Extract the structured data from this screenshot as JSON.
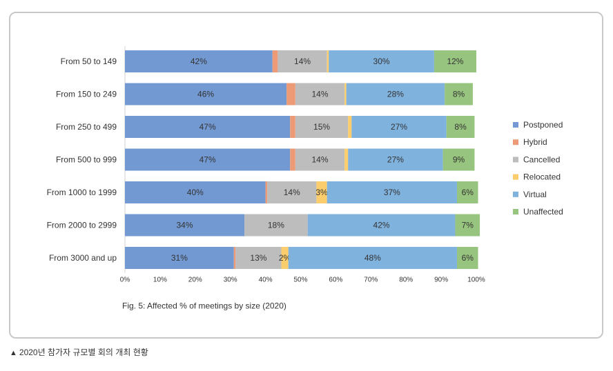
{
  "chart_data": {
    "type": "bar",
    "orientation": "horizontal",
    "stacked": true,
    "categories": [
      "From 50 to 149",
      "From 150 to 249",
      "From 250 to 499",
      "From 500 to 999",
      "From 1000 to 1999",
      "From 2000 to 2999",
      "From 3000 and up"
    ],
    "series": [
      {
        "name": "Postponed",
        "color": "#7399d2",
        "values": [
          42,
          46,
          47,
          47,
          40,
          34,
          31
        ],
        "labels": [
          "42%",
          "46%",
          "47%",
          "47%",
          "40%",
          "34%",
          "31%"
        ]
      },
      {
        "name": "Hybrid",
        "color": "#ec9b76",
        "values": [
          1.5,
          2.5,
          1.5,
          1.5,
          0.5,
          0,
          0.5
        ],
        "labels": [
          "",
          "",
          "",
          "",
          "",
          "",
          ""
        ]
      },
      {
        "name": "Cancelled",
        "color": "#bdbdbd",
        "values": [
          14,
          14,
          15,
          14,
          14,
          18,
          13
        ],
        "labels": [
          "14%",
          "14%",
          "15%",
          "14%",
          "14%",
          "18%",
          "13%"
        ]
      },
      {
        "name": "Relocated",
        "color": "#fbcd6c",
        "values": [
          0.5,
          0.5,
          1,
          1,
          3,
          0,
          2
        ],
        "labels": [
          "",
          "",
          "",
          "",
          "3%",
          "",
          "2%"
        ]
      },
      {
        "name": "Virtual",
        "color": "#80b2de",
        "values": [
          30,
          28,
          27,
          27,
          37,
          42,
          48
        ],
        "labels": [
          "30%",
          "28%",
          "27%",
          "27%",
          "37%",
          "42%",
          "48%"
        ]
      },
      {
        "name": "Unaffected",
        "color": "#97c47e",
        "values": [
          12,
          8,
          8,
          9,
          6,
          7,
          6
        ],
        "labels": [
          "12%",
          "8%",
          "8%",
          "9%",
          "6%",
          "7%",
          "6%"
        ]
      }
    ],
    "x_ticks": [
      "0%",
      "10%",
      "20%",
      "30%",
      "40%",
      "50%",
      "60%",
      "70%",
      "80%",
      "90%",
      "100%"
    ],
    "xlim": [
      0,
      100
    ],
    "title": "Fig. 5: Affected % of meetings by size (2020)",
    "legend_position": "right",
    "grid": false
  },
  "caption": {
    "marker": "▲",
    "text": "2020년 참가자 규모별 회의 개최 현황"
  }
}
